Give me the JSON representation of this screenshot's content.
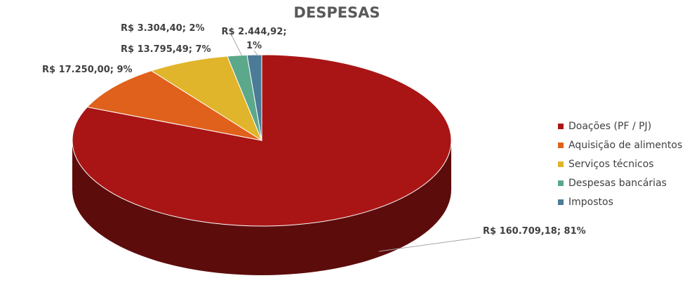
{
  "chart_data": {
    "type": "pie",
    "title": "DESPESAS",
    "categories": [
      "Doações (PF / PJ)",
      "Aquisição de alimentos",
      "Serviços técnicos",
      "Despesas bancárias",
      "Impostos"
    ],
    "values": [
      160709.18,
      17250.0,
      13795.49,
      3304.4,
      2444.92
    ],
    "value_labels": [
      "R$ 160.709,18; 81%",
      "R$ 17.250,00; 9%",
      "R$ 13.795,49; 7%",
      "R$ 3.304,40; 2%",
      "R$ 2.444,92; 1%"
    ],
    "colors": [
      "#a91515",
      "#e0611b",
      "#e1b52b",
      "#5ba88b",
      "#4b7b97"
    ],
    "legend": "right"
  }
}
